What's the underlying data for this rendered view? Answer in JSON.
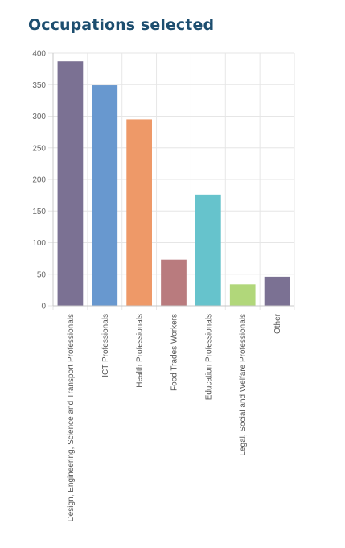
{
  "title": "Occupations selected",
  "chart_data": {
    "type": "bar",
    "title": "Occupations selected",
    "xlabel": "",
    "ylabel": "",
    "ylim": [
      0,
      400
    ],
    "yticks": [
      0,
      50,
      100,
      150,
      200,
      250,
      300,
      350,
      400
    ],
    "grid": true,
    "legend": "none",
    "categories": [
      "Design, Engineering, Science and Transport Professionals",
      "ICT Professionals",
      "Health Professionals",
      "Food Trades Workers",
      "Education Professionals",
      "Legal, Social and Welfare Professionals",
      "Other"
    ],
    "values": [
      387,
      349,
      295,
      73,
      176,
      34,
      46
    ],
    "colors": [
      "#7b7193",
      "#6898cf",
      "#ee9968",
      "#b97b7e",
      "#66c3cc",
      "#b1d77a",
      "#7b7193"
    ]
  }
}
